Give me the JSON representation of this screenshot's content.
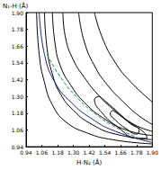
{
  "chart_data": {
    "type": "line",
    "x_label": "H-N₂ (Å)",
    "y_label": "N₁-H (Å)",
    "xlim": [
      0.94,
      1.9
    ],
    "ylim": [
      0.94,
      1.9
    ],
    "xticks": [
      0.94,
      1.06,
      1.18,
      {
        "value": 1.3,
        "label": "1.30"
      },
      1.42,
      1.54,
      1.66,
      1.78,
      {
        "value": 1.9,
        "label": "1.90"
      }
    ],
    "yticks": [
      0.94,
      1.06,
      1.18,
      {
        "value": 1.3,
        "label": "1.30"
      },
      1.42,
      1.54,
      1.66,
      1.78,
      {
        "value": 1.9,
        "label": "1.90"
      }
    ],
    "grid": false,
    "series": [
      {
        "color": "#000000",
        "line_style": "solid",
        "x": [
          1.02,
          1.04,
          1.08,
          1.14,
          1.24,
          1.4,
          1.6,
          1.9
        ],
        "values": [
          1.9,
          1.6,
          1.4,
          1.24,
          1.12,
          1.04,
          0.99,
          0.96
        ]
      },
      {
        "color": "#000000",
        "line_style": "solid",
        "x": [
          1.08,
          1.1,
          1.14,
          1.2,
          1.3,
          1.44,
          1.62,
          1.9
        ],
        "values": [
          1.9,
          1.64,
          1.46,
          1.32,
          1.2,
          1.1,
          1.03,
          0.99
        ]
      },
      {
        "color": "#000000",
        "line_style": "solid",
        "x": [
          1.14,
          1.16,
          1.2,
          1.28,
          1.38,
          1.52,
          1.7,
          1.9
        ],
        "values": [
          1.9,
          1.68,
          1.52,
          1.38,
          1.26,
          1.15,
          1.06,
          1.02
        ]
      },
      {
        "color": "#000000",
        "line_style": "solid",
        "x": [
          1.22,
          1.24,
          1.3,
          1.38,
          1.48,
          1.6,
          1.76,
          1.9
        ],
        "values": [
          1.9,
          1.72,
          1.56,
          1.44,
          1.32,
          1.21,
          1.1,
          1.05
        ]
      },
      {
        "color": "#000000",
        "line_style": "solid",
        "x": [
          1.34,
          1.38,
          1.46,
          1.56,
          1.68,
          1.8,
          1.9
        ],
        "values": [
          1.9,
          1.7,
          1.52,
          1.38,
          1.26,
          1.16,
          1.1
        ]
      },
      {
        "color": "#000000",
        "line_style": "solid",
        "x": [
          1.46,
          1.52,
          1.62,
          1.74,
          1.9
        ],
        "values": [
          1.9,
          1.72,
          1.54,
          1.4,
          1.26
        ]
      },
      {
        "color": "#000000",
        "line_style": "solid",
        "x": [
          1.5,
          1.6,
          1.72,
          1.84,
          1.86,
          1.78,
          1.64,
          1.52,
          1.46,
          1.5
        ],
        "values": [
          1.3,
          1.22,
          1.12,
          1.04,
          1.0,
          1.0,
          1.08,
          1.18,
          1.28,
          1.3
        ]
      },
      {
        "color": "#000000",
        "line_style": "solid",
        "x": [
          1.6,
          1.66,
          1.74,
          1.8,
          1.78,
          1.7,
          1.62,
          1.58,
          1.6
        ],
        "values": [
          1.2,
          1.16,
          1.1,
          1.06,
          1.03,
          1.07,
          1.13,
          1.18,
          1.2
        ]
      },
      {
        "color": "#1a237e",
        "line_style": "solid",
        "x": [
          1.04,
          1.08,
          1.16,
          1.28,
          1.44,
          1.62,
          1.9
        ],
        "values": [
          1.9,
          1.6,
          1.4,
          1.26,
          1.14,
          1.05,
          0.97
        ]
      },
      {
        "color": "#1e8c5a",
        "line_style": "dashed",
        "x": [
          1.1,
          1.2,
          1.32,
          1.46,
          1.62,
          1.8
        ],
        "values": [
          1.6,
          1.44,
          1.3,
          1.18,
          1.08,
          1.0
        ]
      }
    ]
  }
}
